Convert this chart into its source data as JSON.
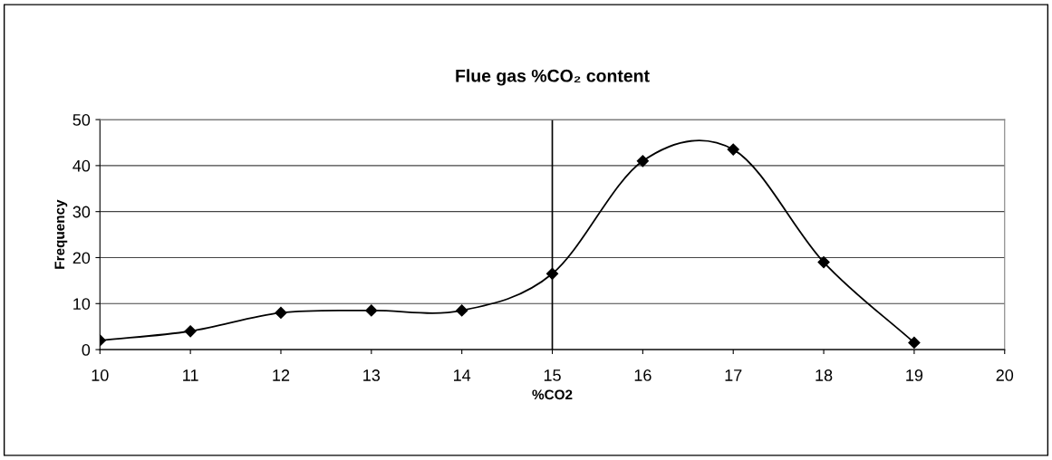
{
  "chart_data": {
    "type": "line",
    "title": "Flue gas %CO₂ content",
    "xlabel": "%CO2",
    "ylabel": "Frequency",
    "x": [
      10,
      11,
      12,
      13,
      14,
      15,
      16,
      17,
      18,
      19
    ],
    "series": [
      {
        "color": "#000000",
        "values": [
          2,
          4,
          8,
          8.5,
          8.5,
          16.5,
          41,
          43.5,
          19,
          1.5
        ]
      }
    ],
    "xlim": [
      10,
      20
    ],
    "xticks": [
      10,
      11,
      12,
      13,
      14,
      15,
      16,
      17,
      18,
      19,
      20
    ],
    "ylim": [
      0,
      50
    ],
    "yticks": [
      0,
      10,
      20,
      30,
      40,
      50
    ],
    "grid": "y",
    "marker": "diamond",
    "line_style": "solid",
    "ref_lines": [
      {
        "axis": "x",
        "value": 15,
        "color": "#000000"
      }
    ]
  }
}
